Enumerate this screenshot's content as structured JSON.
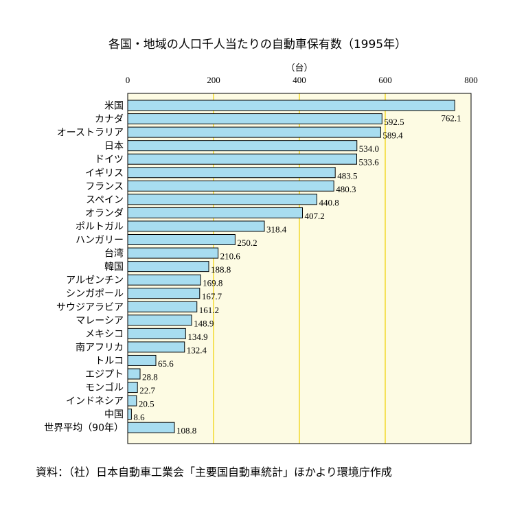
{
  "chart_data": {
    "type": "bar",
    "orientation": "horizontal",
    "title": "各国・地域の人口千人当たりの自動車保有数（1995年）",
    "unit": "（台）",
    "source": "資料：（社）日本自動車工業会「主要国自動車統計」ほかより環境庁作成",
    "xlim": [
      0,
      800
    ],
    "xticks": [
      0,
      200,
      400,
      600,
      800
    ],
    "grid": true,
    "categories": [
      "米国",
      "カナダ",
      "オーストラリア",
      "日本",
      "ドイツ",
      "イギリス",
      "フランス",
      "スペイン",
      "オランダ",
      "ポルトガル",
      "ハンガリー",
      "台湾",
      "韓国",
      "アルゼンチン",
      "シンガポール",
      "サウジアラビア",
      "マレーシア",
      "メキシコ",
      "南アフリカ",
      "トルコ",
      "エジプト",
      "モンゴル",
      "インドネシア",
      "中国",
      "世界平均（90年）"
    ],
    "values": [
      762.1,
      592.5,
      589.4,
      534.0,
      533.6,
      483.5,
      480.3,
      440.8,
      407.2,
      318.4,
      250.2,
      210.6,
      188.8,
      169.8,
      167.7,
      161.2,
      148.9,
      134.9,
      132.4,
      65.6,
      28.8,
      22.7,
      20.5,
      8.6,
      108.8
    ],
    "value_labels": [
      "762.1",
      "592.5",
      "589.4",
      "534.0",
      "533.6",
      "483.5",
      "480.3",
      "440.8",
      "407.2",
      "318.4",
      "250.2",
      "210.6",
      "188.8",
      "169.8",
      "167.7",
      "161.2",
      "148.9",
      "134.9",
      "132.4",
      "65.6",
      "28.8",
      "22.7",
      "20.5",
      "8.6",
      "108.8"
    ],
    "colors": {
      "bar": "#a8ddf0",
      "plot_bg": "#fdfbe3",
      "grid": "#f0d000",
      "border": "#000000"
    }
  }
}
